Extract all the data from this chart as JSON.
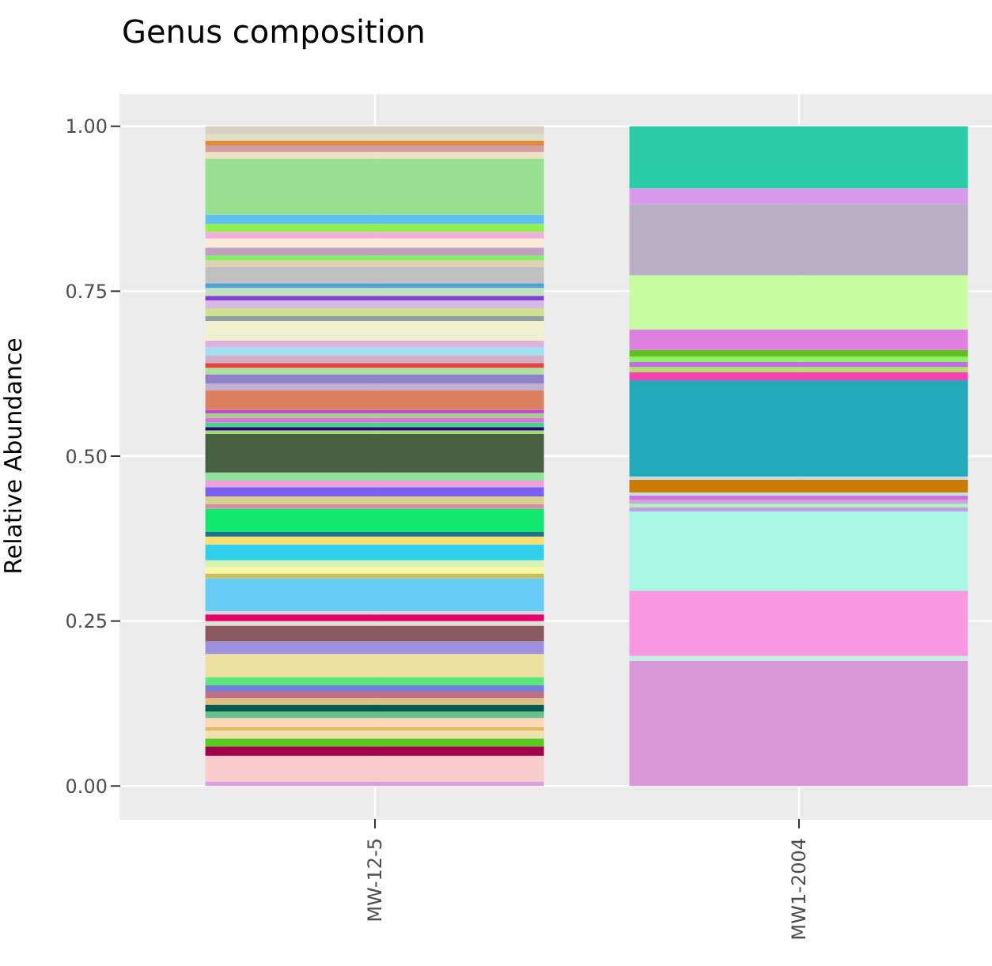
{
  "chart_data": {
    "type": "bar",
    "title": "Genus composition",
    "ylabel": "Relative Abundance",
    "categories": [
      "MW-12-5",
      "MW1-2004"
    ],
    "stacked": true,
    "grid": true,
    "ylim": [
      -0.05,
      1.05
    ],
    "yticks": [
      {
        "value": 0,
        "label": "0.00"
      },
      {
        "value": 0.25,
        "label": "0.25"
      },
      {
        "value": 0.5,
        "label": "0.50"
      },
      {
        "value": 0.75,
        "label": "0.75"
      },
      {
        "value": 1,
        "label": "1.00"
      }
    ],
    "series": [
      {
        "color": "#d9a0e0",
        "values": [
          0.007,
          null
        ]
      },
      {
        "color": "#f9cccc",
        "values": [
          0.039,
          null
        ]
      },
      {
        "color": "#a0004c",
        "values": [
          0.014,
          null
        ]
      },
      {
        "color": "#55cc22",
        "values": [
          0.012,
          null
        ]
      },
      {
        "color": "#f0e0b0",
        "values": [
          0.012,
          null
        ]
      },
      {
        "color": "#e0b860",
        "values": [
          0.005,
          null
        ]
      },
      {
        "color": "#fad8b8",
        "values": [
          0.014,
          null
        ]
      },
      {
        "color": "#6ac08a",
        "values": [
          0.01,
          null
        ]
      },
      {
        "color": "#005a50",
        "values": [
          0.01,
          null
        ]
      },
      {
        "color": "#e0c080",
        "values": [
          0.01,
          null
        ]
      },
      {
        "color": "#c07080",
        "values": [
          0.01,
          null
        ]
      },
      {
        "color": "#7080d8",
        "values": [
          0.01,
          null
        ]
      },
      {
        "color": "#58e878",
        "values": [
          0.012,
          null
        ]
      },
      {
        "color": "#ebe0a0",
        "values": [
          0.035,
          null
        ]
      },
      {
        "color": "#a090e0",
        "values": [
          0.019,
          null
        ]
      },
      {
        "color": "#8a5a60",
        "values": [
          0.024,
          null
        ]
      },
      {
        "color": "#e0e0d0",
        "values": [
          0.007,
          null
        ]
      },
      {
        "color": "#e8006a",
        "values": [
          0.01,
          null
        ]
      },
      {
        "color": "#d8d8d8",
        "values": [
          0.005,
          null
        ]
      },
      {
        "color": "#66ccf4",
        "values": [
          0.05,
          null
        ]
      },
      {
        "color": "#c8c060",
        "values": [
          0.007,
          null
        ]
      },
      {
        "color": "#f8f8a0",
        "values": [
          0.01,
          null
        ]
      },
      {
        "color": "#d8f0b0",
        "values": [
          0.01,
          null
        ]
      },
      {
        "color": "#30d0ec",
        "values": [
          0.024,
          null
        ]
      },
      {
        "color": "#f8e070",
        "values": [
          0.012,
          null
        ]
      },
      {
        "color": "#207090",
        "values": [
          0.007,
          null
        ]
      },
      {
        "color": "#10e870",
        "values": [
          0.035,
          null
        ]
      },
      {
        "color": "#d090a0",
        "values": [
          0.007,
          null
        ]
      },
      {
        "color": "#d8d090",
        "values": [
          0.012,
          null
        ]
      },
      {
        "color": "#7a60f0",
        "values": [
          0.014,
          null
        ]
      },
      {
        "color": "#f0a0d8",
        "values": [
          0.01,
          null
        ]
      },
      {
        "color": "#90e0a0",
        "values": [
          0.012,
          null
        ]
      },
      {
        "color": "#486040",
        "values": [
          0.059,
          null
        ]
      },
      {
        "color": "#98e070",
        "values": [
          0.005,
          null
        ]
      },
      {
        "color": "#300080",
        "values": [
          0.005,
          null
        ]
      },
      {
        "color": "#40d880",
        "values": [
          0.007,
          null
        ]
      },
      {
        "color": "#e070e0",
        "values": [
          0.007,
          null
        ]
      },
      {
        "color": "#a0d080",
        "values": [
          0.007,
          null
        ]
      },
      {
        "color": "#c040e0",
        "values": [
          0.005,
          null
        ]
      },
      {
        "color": "#d88060",
        "values": [
          0.03,
          null
        ]
      },
      {
        "color": "#c0b0d0",
        "values": [
          0.01,
          null
        ]
      },
      {
        "color": "#9080c8",
        "values": [
          0.014,
          null
        ]
      },
      {
        "color": "#b0e0a0",
        "values": [
          0.01,
          null
        ]
      },
      {
        "color": "#e84040",
        "values": [
          0.007,
          null
        ]
      },
      {
        "color": "#d0b0c8",
        "values": [
          0.012,
          null
        ]
      },
      {
        "color": "#a0e0f0",
        "values": [
          0.012,
          null
        ]
      },
      {
        "color": "#e0b0e0",
        "values": [
          0.01,
          null
        ]
      },
      {
        "color": "#f0f0d0",
        "values": [
          0.03,
          null
        ]
      },
      {
        "color": "#90a0a0",
        "values": [
          0.007,
          null
        ]
      },
      {
        "color": "#d0e090",
        "values": [
          0.012,
          null
        ]
      },
      {
        "color": "#d8b8e8",
        "values": [
          0.012,
          null
        ]
      },
      {
        "color": "#8040d0",
        "values": [
          0.007,
          null
        ]
      },
      {
        "color": "#c0e0c0",
        "values": [
          0.012,
          null
        ]
      },
      {
        "color": "#50a0d0",
        "values": [
          0.007,
          null
        ]
      },
      {
        "color": "#c0c0c0",
        "values": [
          0.025,
          null
        ]
      },
      {
        "color": "#e0d0b0",
        "values": [
          0.01,
          null
        ]
      },
      {
        "color": "#80f060",
        "values": [
          0.007,
          null
        ]
      },
      {
        "color": "#c0a0c0",
        "values": [
          0.012,
          null
        ]
      },
      {
        "color": "#f8e8d8",
        "values": [
          0.014,
          null
        ]
      },
      {
        "color": "#f0b0d8",
        "values": [
          0.01,
          null
        ]
      },
      {
        "color": "#90f050",
        "values": [
          0.012,
          null
        ]
      },
      {
        "color": "#60c0f0",
        "values": [
          0.014,
          null
        ]
      },
      {
        "color": "#98e090",
        "values": [
          0.085,
          null
        ]
      },
      {
        "color": "#f0e0c8",
        "values": [
          0.01,
          null
        ]
      },
      {
        "color": "#d0a0a0",
        "values": [
          0.01,
          null
        ]
      },
      {
        "color": "#e08a40",
        "values": [
          0.007,
          null
        ]
      },
      {
        "color": "#e0e0c0",
        "values": [
          0.01,
          null
        ]
      },
      {
        "color": "#d8d0c0",
        "values": [
          0.012,
          null
        ]
      },
      {
        "color": "#d898d8",
        "values": [
          null,
          0.19
        ]
      },
      {
        "color": "#c0f0e0",
        "values": [
          null,
          0.007
        ]
      },
      {
        "color": "#f898e0",
        "values": [
          null,
          0.099
        ]
      },
      {
        "color": "#a8f8e4",
        "values": [
          null,
          0.12
        ]
      },
      {
        "color": "#c0a0e0",
        "values": [
          null,
          0.006
        ]
      },
      {
        "color": "#b0f0c0",
        "values": [
          null,
          0.006
        ]
      },
      {
        "color": "#d0a0d8",
        "values": [
          null,
          0.006
        ]
      },
      {
        "color": "#d070e0",
        "values": [
          null,
          0.006
        ]
      },
      {
        "color": "#c0e0e0",
        "values": [
          null,
          0.005
        ]
      },
      {
        "color": "#cc7a00",
        "values": [
          null,
          0.019
        ]
      },
      {
        "color": "#c8d8e8",
        "values": [
          null,
          0.005
        ]
      },
      {
        "color": "#22aabb",
        "values": [
          null,
          0.146
        ]
      },
      {
        "color": "#ff40b0",
        "values": [
          null,
          0.012
        ]
      },
      {
        "color": "#b0e070",
        "values": [
          null,
          0.008
        ]
      },
      {
        "color": "#c070e0",
        "values": [
          null,
          0.008
        ]
      },
      {
        "color": "#90f060",
        "values": [
          null,
          0.008
        ]
      },
      {
        "color": "#60c020",
        "values": [
          null,
          0.01
        ]
      },
      {
        "color": "#dd80e0",
        "values": [
          null,
          0.031
        ]
      },
      {
        "color": "#c8fca0",
        "values": [
          null,
          0.082
        ]
      },
      {
        "color": "#b8afc5",
        "values": [
          null,
          0.108
        ]
      },
      {
        "color": "#d898ec",
        "values": [
          null,
          0.024
        ]
      },
      {
        "color": "#2acca8",
        "values": [
          null,
          0.094
        ]
      }
    ]
  }
}
